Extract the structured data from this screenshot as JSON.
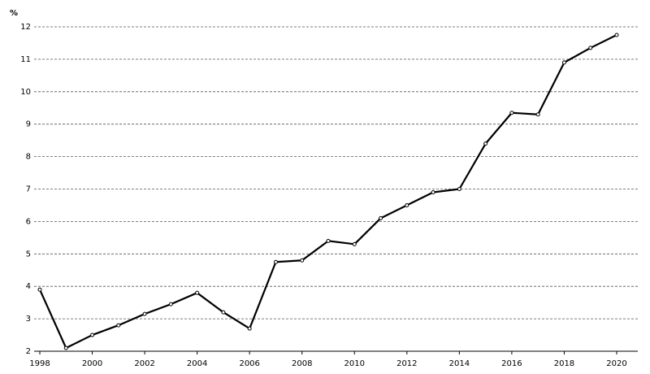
{
  "chart_data": {
    "type": "line",
    "y_label": "%",
    "x": [
      1998,
      1999,
      2000,
      2001,
      2002,
      2003,
      2004,
      2005,
      2006,
      2007,
      2008,
      2009,
      2010,
      2011,
      2012,
      2013,
      2014,
      2015,
      2016,
      2017,
      2018,
      2019,
      2020
    ],
    "values": [
      3.9,
      2.1,
      2.5,
      2.8,
      3.15,
      3.45,
      3.8,
      3.2,
      2.7,
      4.75,
      4.8,
      5.4,
      5.3,
      6.1,
      6.5,
      6.9,
      7.0,
      8.4,
      9.35,
      9.3,
      10.9,
      11.35,
      11.75
    ],
    "color": "#000000",
    "xlim": [
      1998,
      2020
    ],
    "xticks": [
      1998,
      2000,
      2002,
      2004,
      2006,
      2008,
      2010,
      2012,
      2014,
      2016,
      2018,
      2020
    ],
    "ylim": [
      2,
      12
    ],
    "yticks": [
      2,
      3,
      4,
      5,
      6,
      7,
      8,
      9,
      10,
      11,
      12
    ],
    "grid": true
  }
}
